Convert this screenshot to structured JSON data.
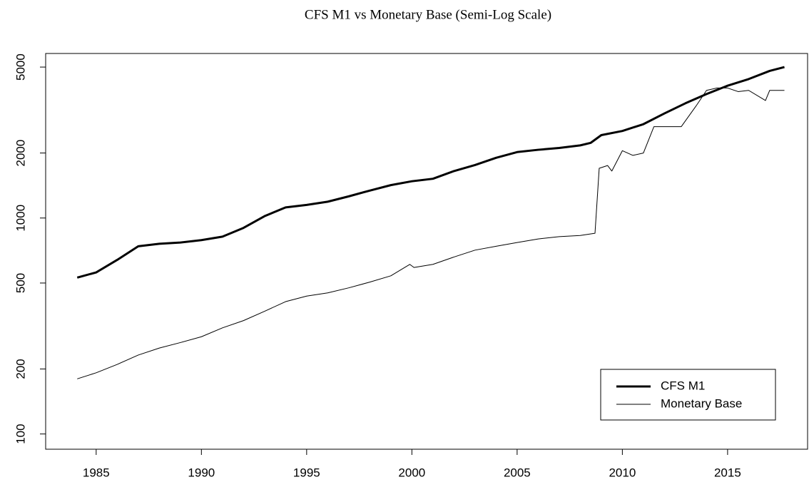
{
  "chart_data": {
    "type": "line",
    "title": "CFS M1 vs Monetary Base (Semi-Log Scale)",
    "log_y": true,
    "legend": "bottom-right",
    "xlim": [
      1982.6,
      2018.8
    ],
    "xticks": [
      1985,
      1990,
      1995,
      2000,
      2005,
      2010,
      2015
    ],
    "ylim": [
      85,
      5780
    ],
    "yticks": [
      100,
      200,
      500,
      1000,
      2000,
      5000
    ],
    "series": [
      {
        "name": "CFS M1",
        "color": "#000000",
        "width": 3,
        "x": [
          1984.1,
          1985,
          1986,
          1987,
          1988,
          1989,
          1990,
          1991,
          1992,
          1993,
          1994,
          1995,
          1996,
          1997,
          1998,
          1999,
          2000,
          2001,
          2002,
          2003,
          2004,
          2005,
          2006,
          2007,
          2008,
          2008.5,
          2009,
          2010,
          2011,
          2012,
          2013,
          2014,
          2015,
          2016,
          2017,
          2017.7
        ],
        "values": [
          530,
          560,
          640,
          740,
          760,
          770,
          790,
          820,
          900,
          1020,
          1120,
          1150,
          1190,
          1260,
          1340,
          1420,
          1480,
          1520,
          1650,
          1760,
          1900,
          2020,
          2070,
          2110,
          2170,
          2230,
          2420,
          2530,
          2720,
          3050,
          3400,
          3750,
          4100,
          4400,
          4800,
          5000
        ]
      },
      {
        "name": "Monetary Base",
        "color": "#000000",
        "width": 1,
        "x": [
          1984.1,
          1985,
          1986,
          1987,
          1988,
          1989,
          1990,
          1991,
          1992,
          1993,
          1994,
          1995,
          1996,
          1997,
          1998,
          1999,
          1999.9,
          2000.1,
          2001,
          2002,
          2003,
          2004,
          2005,
          2006,
          2007,
          2008,
          2008.7,
          2008.9,
          2009.3,
          2009.5,
          2010,
          2010.5,
          2011,
          2011.5,
          2012,
          2012.8,
          2013.5,
          2014,
          2014.5,
          2015,
          2015.5,
          2016,
          2016.8,
          2017,
          2017.7
        ],
        "values": [
          180,
          192,
          210,
          232,
          250,
          265,
          282,
          310,
          335,
          370,
          410,
          435,
          450,
          475,
          505,
          540,
          610,
          590,
          610,
          660,
          710,
          740,
          770,
          800,
          820,
          830,
          850,
          1700,
          1750,
          1650,
          2050,
          1950,
          2000,
          2650,
          2650,
          2650,
          3300,
          3900,
          4000,
          4000,
          3850,
          3900,
          3500,
          3900,
          3900
        ]
      }
    ]
  }
}
